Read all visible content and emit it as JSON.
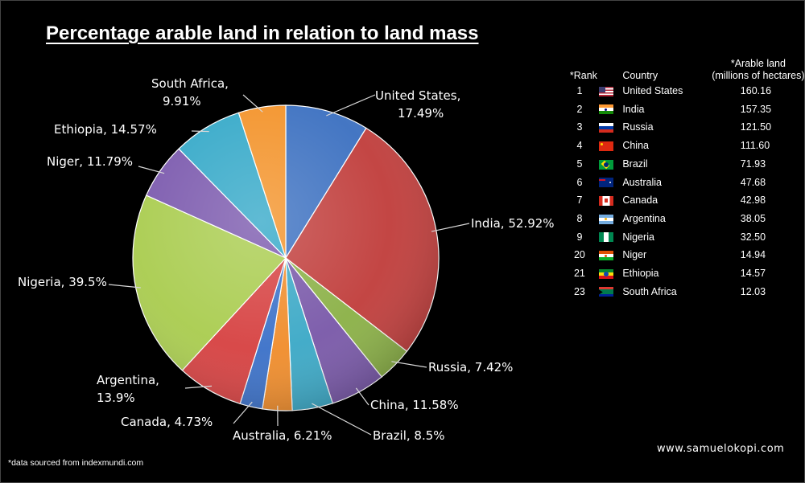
{
  "title": "Percentage arable land in relation to land mass",
  "chart_data": {
    "type": "pie",
    "title": "Percentage arable land in relation to land mass",
    "slices": [
      {
        "label": "United States, 17.49%",
        "country": "United States",
        "value": 17.49,
        "color": "#3a6fc0"
      },
      {
        "label": "India, 52.92%",
        "country": "India",
        "value": 52.92,
        "color": "#c03c3a"
      },
      {
        "label": "Russia, 7.42%",
        "country": "Russia",
        "value": 7.42,
        "color": "#8ab045"
      },
      {
        "label": "China, 11.58%",
        "country": "China",
        "value": 11.58,
        "color": "#7857a8"
      },
      {
        "label": "Brazil, 8.5%",
        "country": "Brazil",
        "value": 8.5,
        "color": "#3aa8c6"
      },
      {
        "label": "Australia, 6.21%",
        "country": "Australia",
        "value": 6.21,
        "color": "#f08c2a"
      },
      {
        "label": "Canada, 4.73%",
        "country": "Canada",
        "value": 4.73,
        "color": "#3a70c8"
      },
      {
        "label": "Argentina, 13.9%",
        "country": "Argentina",
        "value": 13.9,
        "color": "#d64040"
      },
      {
        "label": "Nigeria, 39.5%",
        "country": "Nigeria",
        "value": 39.5,
        "color": "#a9cc4e"
      },
      {
        "label": "Niger, 11.79%",
        "country": "Niger",
        "value": 11.79,
        "color": "#7a58ad"
      },
      {
        "label": "Ethiopia, 14.57%",
        "country": "Ethiopia",
        "value": 14.57,
        "color": "#33a8c8"
      },
      {
        "label": "South Africa, 9.91%",
        "country": "South Africa",
        "value": 9.91,
        "color": "#f39228"
      }
    ]
  },
  "table": {
    "headers": {
      "rank": "*Rank",
      "country": "Country",
      "arable_line1": "*Arable land",
      "arable_line2": "(millions of hectares)"
    },
    "rows": [
      {
        "rank": "1",
        "flag": "us-flag-icon",
        "country": "United States",
        "value": "160.16"
      },
      {
        "rank": "2",
        "flag": "india-flag-icon",
        "country": "India",
        "value": "157.35"
      },
      {
        "rank": "3",
        "flag": "russia-flag-icon",
        "country": "Russia",
        "value": "121.50"
      },
      {
        "rank": "4",
        "flag": "china-flag-icon",
        "country": "China",
        "value": "111.60"
      },
      {
        "rank": "5",
        "flag": "brazil-flag-icon",
        "country": "Brazil",
        "value": "71.93"
      },
      {
        "rank": "6",
        "flag": "australia-flag-icon",
        "country": "Australia",
        "value": "47.68"
      },
      {
        "rank": "7",
        "flag": "canada-flag-icon",
        "country": "Canada",
        "value": "42.98"
      },
      {
        "rank": "8",
        "flag": "argentina-flag-icon",
        "country": "Argentina",
        "value": "38.05"
      },
      {
        "rank": "9",
        "flag": "nigeria-flag-icon",
        "country": "Nigeria",
        "value": "32.50"
      },
      {
        "rank": "20",
        "flag": "niger-flag-icon",
        "country": "Niger",
        "value": "14.94"
      },
      {
        "rank": "21",
        "flag": "ethiopia-flag-icon",
        "country": "Ethiopia",
        "value": "14.57"
      },
      {
        "rank": "23",
        "flag": "south-africa-flag-icon",
        "country": "South Africa",
        "value": "12.03"
      }
    ]
  },
  "footer": {
    "source": "*data sourced from indexmundi.com",
    "website": "www.samuelokopi.com"
  }
}
